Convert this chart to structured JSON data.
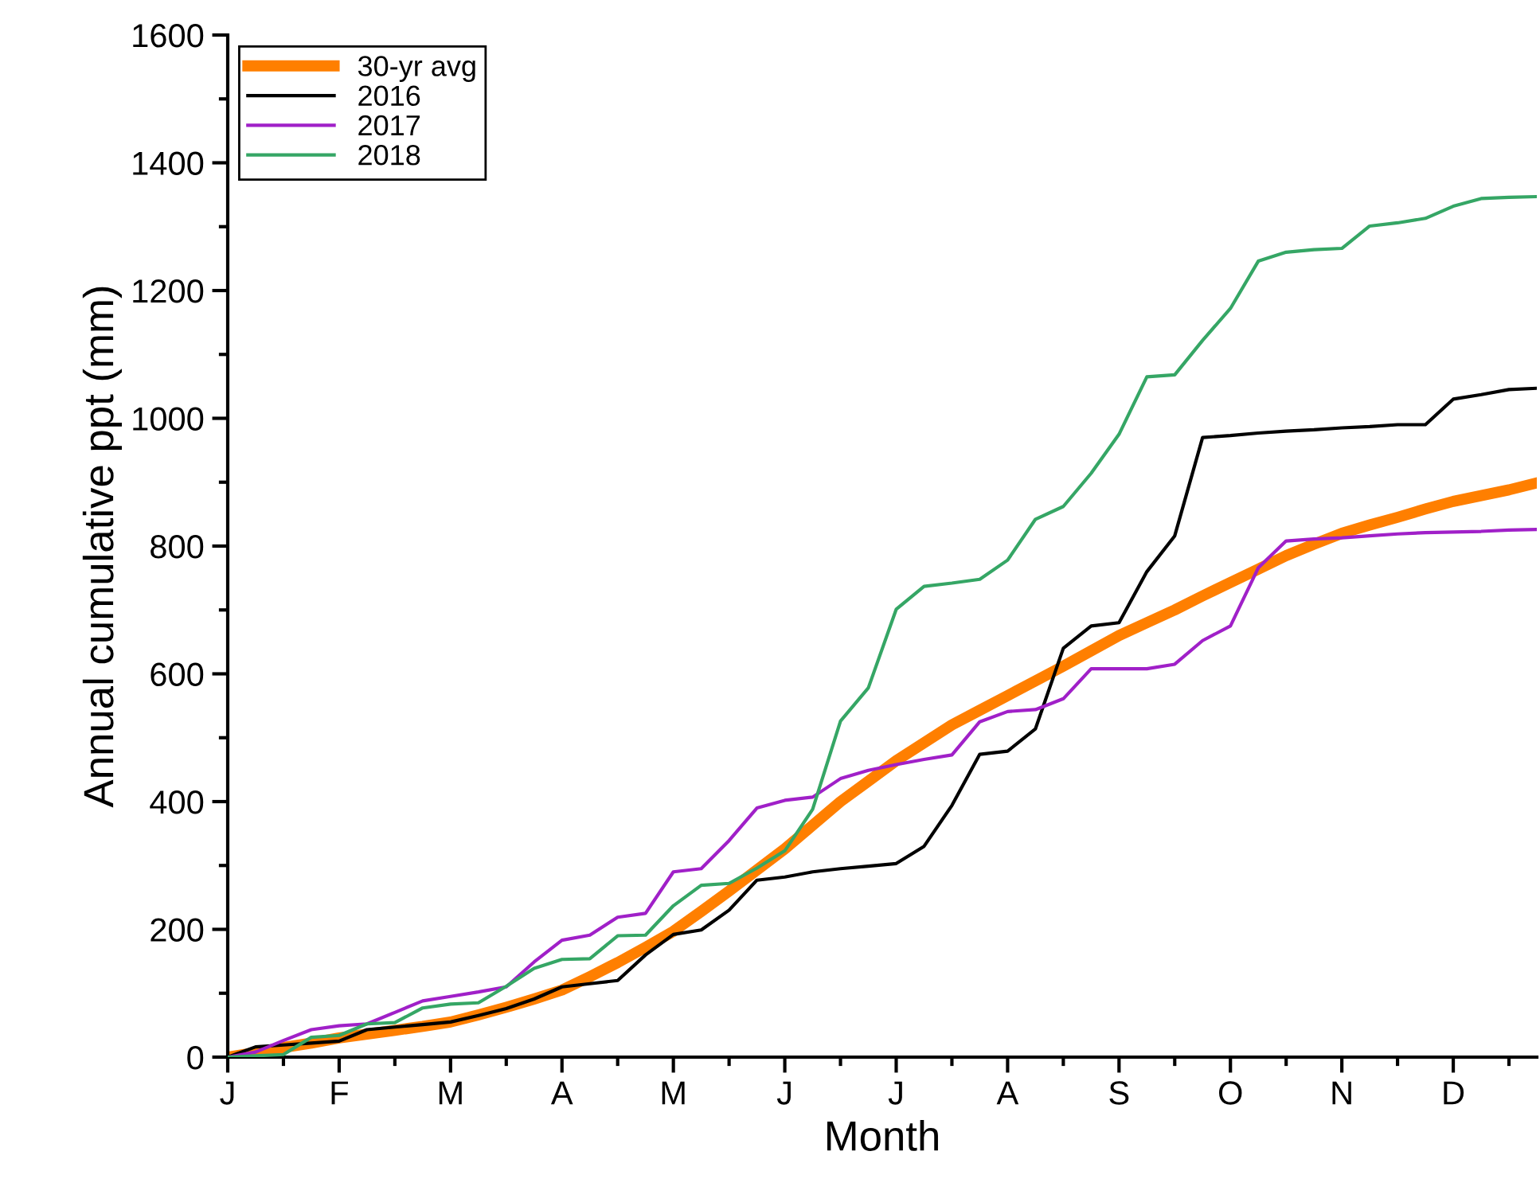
{
  "chart_data": {
    "type": "line",
    "xlabel": "Month",
    "ylabel": "Annual cumulative ppt (mm)",
    "categories": [
      "J",
      null,
      null,
      null,
      "F",
      null,
      null,
      null,
      "M",
      null,
      null,
      null,
      "A",
      null,
      null,
      null,
      "M",
      null,
      null,
      null,
      "J",
      null,
      null,
      null,
      "J",
      null,
      null,
      null,
      "A",
      null,
      null,
      null,
      "S",
      null,
      null,
      null,
      "O",
      null,
      null,
      null,
      "N",
      null,
      null,
      null,
      "D",
      null,
      null,
      null
    ],
    "ylim": [
      0,
      1600
    ],
    "yticks": [
      0,
      {
        "value": 100,
        "label": null
      },
      200,
      {
        "value": 300,
        "label": null
      },
      400,
      {
        "value": 500,
        "label": null
      },
      600,
      {
        "value": 700,
        "label": null
      },
      800,
      {
        "value": 900,
        "label": null
      },
      1000,
      {
        "value": 1100,
        "label": null
      },
      1200,
      {
        "value": 1300,
        "label": null
      },
      1400,
      {
        "value": 1500,
        "label": null
      },
      1600
    ],
    "grid": false,
    "legend": "top left",
    "marker": "none",
    "line_style": "solid",
    "series": [
      {
        "name": "30-yr avg",
        "color": "#ff7f00",
        "values": [
          0,
          7,
          15,
          22,
          30,
          36,
          42,
          48,
          55,
          66,
          78,
          91,
          105,
          126,
          148,
          172,
          197,
          228,
          260,
          293,
          326,
          363,
          400,
          432,
          464,
          492,
          520,
          543,
          566,
          589,
          612,
          636,
          660,
          680,
          700,
          722,
          743,
          764,
          785,
          803,
          820,
          833,
          845,
          858,
          870,
          879,
          888,
          899
        ]
      },
      {
        "name": "2016",
        "color": "#000000",
        "values": [
          0,
          16,
          19,
          22,
          25,
          43,
          47,
          51,
          55,
          65,
          76,
          91,
          110,
          115,
          120,
          160,
          192,
          199,
          230,
          277,
          282,
          290,
          295,
          299,
          303,
          330,
          394,
          474,
          479,
          514,
          640,
          675,
          680,
          760,
          816,
          970,
          973,
          977,
          980,
          982,
          985,
          987,
          990,
          990,
          1030,
          1037,
          1045,
          1047
        ]
      },
      {
        "name": "2017",
        "color": "#a020c8",
        "values": [
          0,
          8,
          26,
          43,
          49,
          52,
          70,
          88,
          95,
          102,
          110,
          149,
          183,
          191,
          219,
          225,
          290,
          295,
          339,
          390,
          402,
          407,
          436,
          449,
          458,
          466,
          473,
          525,
          541,
          544,
          561,
          608,
          608,
          608,
          615,
          652,
          675,
          766,
          808,
          811,
          813,
          816,
          819,
          821,
          822,
          823,
          825,
          826
        ]
      },
      {
        "name": "2018",
        "color": "#35a665",
        "values": [
          0,
          2,
          4,
          31,
          34,
          52,
          54,
          77,
          83,
          85,
          111,
          139,
          153,
          154,
          190,
          191,
          237,
          269,
          272,
          296,
          323,
          388,
          526,
          578,
          701,
          737,
          742,
          748,
          778,
          842,
          862,
          914,
          975,
          1065,
          1068,
          1122,
          1172,
          1246,
          1260,
          1264,
          1266,
          1301,
          1306,
          1313,
          1332,
          1344,
          1346,
          1347
        ]
      }
    ]
  }
}
